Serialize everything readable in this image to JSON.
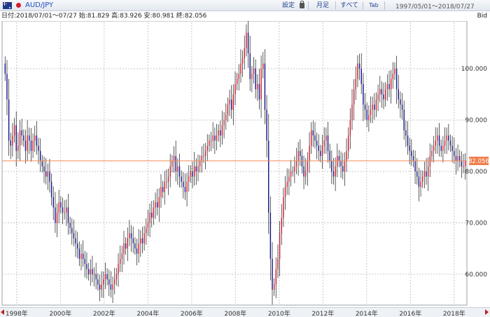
{
  "toolbar": {
    "pair": "AUD/JPY",
    "settings_label": "設定",
    "monthly_label": "月足",
    "all_label": "すべて",
    "tab_label": "Tab",
    "range": "1997/05/01～2018/07/27"
  },
  "info": {
    "text": "日付:2018/07/01～07/27 始:81.829 高:83.926 安:80.981 終:82.056",
    "price_type": "Bid"
  },
  "colors": {
    "up": "#d02030",
    "down": "#1a1a8c",
    "current_line": "#f08a5a",
    "grid": "#c8c8c8"
  },
  "chart_data": {
    "type": "candlestick",
    "x_range": [
      "1997-05",
      "2018-07"
    ],
    "ylim": [
      54,
      109
    ],
    "ytick_labels": [
      "100.000",
      "90.000",
      "80.000",
      "70.000",
      "60.000"
    ],
    "yticks": [
      100,
      90,
      80,
      70,
      60
    ],
    "xtick_labels": [
      "1998年",
      "2000年",
      "2002年",
      "2004年",
      "2006年",
      "2008年",
      "2010年",
      "2012年",
      "2014年",
      "2016年",
      "2018年"
    ],
    "current_value": 82.056,
    "current_label": "82.056",
    "closes": [
      99,
      94,
      86,
      85,
      87,
      89,
      84,
      85,
      88,
      87,
      86,
      84,
      87,
      86,
      84,
      86,
      87,
      85,
      84,
      82,
      81,
      80,
      79,
      80,
      78,
      75,
      73,
      70,
      72,
      74,
      73,
      72,
      72,
      73,
      70,
      69,
      68,
      67,
      66,
      65,
      63,
      64,
      63,
      62,
      61,
      60,
      61,
      60,
      60,
      59,
      58,
      57,
      58,
      59,
      60,
      59,
      58,
      57,
      58,
      59,
      60,
      62,
      63,
      64,
      66,
      65,
      67,
      68,
      67,
      66,
      65,
      64,
      66,
      67,
      66,
      68,
      69,
      70,
      72,
      71,
      73,
      74,
      73,
      75,
      77,
      76,
      78,
      78,
      79,
      81,
      82,
      83,
      80,
      81,
      79,
      78,
      77,
      76,
      78,
      79,
      80,
      79,
      81,
      80,
      81,
      82,
      83,
      83,
      84,
      85,
      86,
      86,
      87,
      86,
      87,
      88,
      87,
      89,
      90,
      91,
      93,
      94,
      92,
      95,
      97,
      98,
      99,
      101,
      102,
      104,
      107,
      103,
      98,
      99,
      100,
      96,
      97,
      94,
      100,
      101,
      92,
      86,
      72,
      63,
      57,
      58,
      61,
      63,
      68,
      71,
      75,
      77,
      78,
      79,
      80,
      80,
      81,
      82,
      84,
      83,
      81,
      79,
      80,
      82,
      85,
      88,
      87,
      86,
      85,
      84,
      83,
      85,
      86,
      87,
      84,
      82,
      80,
      79,
      81,
      83,
      82,
      81,
      80,
      82,
      84,
      87,
      90,
      93,
      96,
      98,
      101,
      100,
      97,
      93,
      92,
      90,
      91,
      92,
      93,
      92,
      94,
      95,
      96,
      95,
      94,
      96,
      97,
      96,
      98,
      99,
      100,
      96,
      94,
      93,
      92,
      88,
      87,
      85,
      84,
      83,
      82,
      80,
      79,
      77,
      78,
      79,
      80,
      79,
      81,
      83,
      84,
      85,
      86,
      87,
      85,
      84,
      85,
      86,
      87,
      86,
      85,
      84,
      83,
      82,
      83,
      82,
      81,
      81,
      82
    ]
  }
}
